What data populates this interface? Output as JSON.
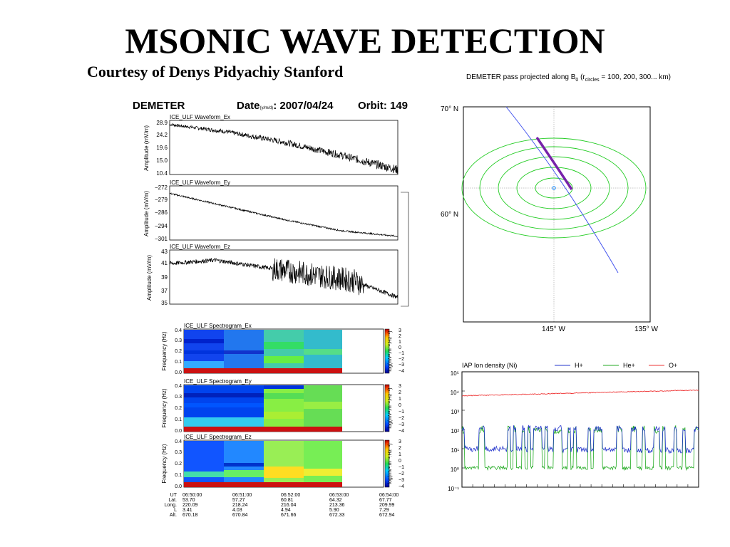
{
  "slide": {
    "title": "MSONIC WAVE DETECTION",
    "courtesy": "Courtesy of Denys Pidyachiy Stanford"
  },
  "demeter_header": {
    "satellite": "DEMETER",
    "date_label": "Date",
    "date_sub": "(y/m/d)",
    "date_value": ": 2007/04/24",
    "orbit": "Orbit: 149"
  },
  "chart_data": [
    {
      "type": "line",
      "panel": "waveform-ex",
      "title": "ICE_ULF Waveform_Ex",
      "ylabel": "Amplitude (mV/m)",
      "yticks": [
        "28.9",
        "24.2",
        "19.6",
        "15.0",
        "10.4"
      ],
      "ylim": [
        10.4,
        28.9
      ],
      "series": [
        {
          "x": [
            0,
            0.25,
            0.5,
            0.75,
            1.0
          ],
          "values": [
            27.5,
            25.0,
            21.5,
            17.0,
            12.0
          ]
        }
      ]
    },
    {
      "type": "line",
      "panel": "waveform-ey",
      "title": "ICE_ULF Waveform_Ey",
      "ylabel": "Amplitude (mV/m)",
      "yticks": [
        "−272",
        "−279",
        "−286",
        "−294",
        "−301"
      ],
      "ylim": [
        -301,
        -272
      ],
      "series": [
        {
          "x": [
            0,
            0.25,
            0.5,
            0.75,
            1.0
          ],
          "values": [
            -276,
            -283,
            -290,
            -296,
            -299
          ]
        }
      ]
    },
    {
      "type": "line",
      "panel": "waveform-ez",
      "title": "ICE_ULF Waveform_Ez",
      "ylabel": "Amplitude (mV/m)",
      "yticks": [
        "43",
        "41",
        "39",
        "37",
        "35"
      ],
      "ylim": [
        35,
        43
      ],
      "series": [
        {
          "x": [
            0,
            0.2,
            0.4,
            0.6,
            0.8,
            1.0
          ],
          "values": [
            41,
            41.5,
            40.5,
            39.5,
            38.5,
            36
          ]
        }
      ]
    },
    {
      "type": "heatmap",
      "panel": "spectrogram-ex",
      "title": "ICE_ULF Spectrogram_Ex",
      "ylabel": "Frequency (Hz)",
      "yticks": [
        "0.4",
        "0.3",
        "0.2",
        "0.1",
        "0.0"
      ],
      "colorbar_label": "log(mV².m⁻².Hz⁻¹)",
      "colorbar_ticks": [
        "3",
        "2",
        "1",
        "0",
        "−1",
        "−2",
        "−3",
        "−4"
      ]
    },
    {
      "type": "heatmap",
      "panel": "spectrogram-ey",
      "title": "ICE_ULF Spectrogram_Ey",
      "ylabel": "Frequency (Hz)",
      "yticks": [
        "0.4",
        "0.3",
        "0.2",
        "0.1",
        "0.0"
      ],
      "colorbar_label": "log(mV².m⁻².Hz⁻¹)",
      "colorbar_ticks": [
        "3",
        "2",
        "1",
        "0",
        "−1",
        "−2",
        "−3",
        "−4"
      ]
    },
    {
      "type": "heatmap",
      "panel": "spectrogram-ez",
      "title": "ICE_ULF Spectrogram_Ez",
      "ylabel": "Frequency (Hz)",
      "yticks": [
        "0.4",
        "0.3",
        "0.2",
        "0.1",
        "0.0"
      ],
      "colorbar_label": "log(mV².m⁻².Hz⁻¹)",
      "colorbar_ticks": [
        "3",
        "2",
        "1",
        "0",
        "−1",
        "−2",
        "−3",
        "−4"
      ]
    },
    {
      "type": "line",
      "panel": "ion-density",
      "title": "IAP Ion density (Ni)",
      "legend": [
        "H+",
        "He+",
        "O+"
      ],
      "legend_colors": [
        "#2233cc",
        "#22aa22",
        "#ee3333"
      ],
      "yticks": [
        "10⁵",
        "10⁴",
        "10³",
        "10²",
        "10¹",
        "10⁰",
        "10⁻¹"
      ],
      "ylim_log10": [
        -1,
        5
      ],
      "series": [
        {
          "name": "O+",
          "x": [
            0,
            1
          ],
          "values_log10": [
            3.75,
            4.05
          ]
        },
        {
          "name": "H+",
          "x": [
            0,
            1
          ],
          "values_log10": [
            2.1,
            2.0
          ]
        },
        {
          "name": "He+",
          "x": [
            0,
            1
          ],
          "values_log10": [
            1.0,
            1.0
          ]
        }
      ]
    }
  ],
  "map": {
    "title_main": "DEMETER pass projected along B",
    "title_sub0": "0",
    "title_r": " (r",
    "title_sub_circles": "circles",
    "title_rest": " = 100, 200, 300... km)",
    "lat_top": "70° N",
    "lat_mid": "60° N",
    "lon_left": "145° W",
    "lon_right": "135° W"
  },
  "orbit_table": {
    "labels": [
      "UT",
      "Lat.",
      "Long.",
      "L",
      "Alt."
    ],
    "columns": [
      [
        "06:50:00",
        "53.70",
        "220.09",
        "3.41",
        "670.18"
      ],
      [
        "06:51:00",
        "57.27",
        "218.24",
        "4.03",
        "670.84"
      ],
      [
        "06:52:00",
        "60.81",
        "216.04",
        "4.94",
        "671.66"
      ],
      [
        "06:53:00",
        "64.32",
        "213.36",
        "5.90",
        "672.33"
      ],
      [
        "06:54:00",
        "67.77",
        "209.99",
        "7.29",
        "672.94"
      ]
    ]
  }
}
